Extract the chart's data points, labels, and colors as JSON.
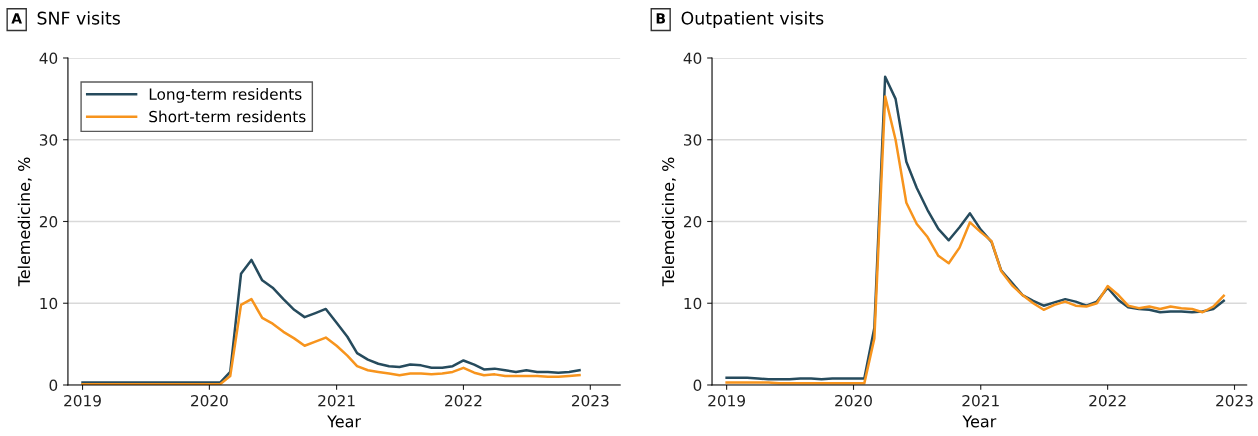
{
  "chart_data": [
    {
      "type": "line",
      "title": "SNF visits",
      "annotations": [
        "A"
      ],
      "xlabel": "Year",
      "ylabel": "Telemedicine, %",
      "x": [
        "2019-01",
        "2019-02",
        "2019-03",
        "2019-04",
        "2019-05",
        "2019-06",
        "2019-07",
        "2019-08",
        "2019-09",
        "2019-10",
        "2019-11",
        "2019-12",
        "2020-01",
        "2020-02",
        "2020-03",
        "2020-04",
        "2020-05",
        "2020-06",
        "2020-07",
        "2020-08",
        "2020-09",
        "2020-10",
        "2020-11",
        "2020-12",
        "2021-01",
        "2021-02",
        "2021-03",
        "2021-04",
        "2021-05",
        "2021-06",
        "2021-07",
        "2021-08",
        "2021-09",
        "2021-10",
        "2021-11",
        "2021-12",
        "2022-01",
        "2022-02",
        "2022-03",
        "2022-04",
        "2022-05",
        "2022-06",
        "2022-07",
        "2022-08",
        "2022-09",
        "2022-10",
        "2022-11",
        "2022-12"
      ],
      "series": [
        {
          "name": "Long-term residents",
          "color": "#264b5d",
          "values": [
            0.3,
            0.3,
            0.3,
            0.3,
            0.3,
            0.3,
            0.3,
            0.3,
            0.3,
            0.3,
            0.3,
            0.3,
            0.3,
            0.3,
            1.6,
            13.6,
            15.3,
            12.8,
            11.9,
            10.5,
            9.2,
            8.3,
            8.8,
            9.3,
            7.6,
            5.9,
            3.9,
            3.1,
            2.6,
            2.3,
            2.2,
            2.5,
            2.4,
            2.1,
            2.1,
            2.3,
            3.0,
            2.5,
            1.9,
            2.0,
            1.8,
            1.6,
            1.8,
            1.6,
            1.6,
            1.5,
            1.6,
            1.8
          ]
        },
        {
          "name": "Short-term residents",
          "color": "#f7941d",
          "values": [
            0.1,
            0.1,
            0.1,
            0.1,
            0.1,
            0.1,
            0.1,
            0.1,
            0.1,
            0.1,
            0.1,
            0.1,
            0.1,
            0.1,
            1.1,
            9.8,
            10.5,
            8.2,
            7.5,
            6.5,
            5.7,
            4.8,
            5.3,
            5.8,
            4.8,
            3.6,
            2.3,
            1.8,
            1.6,
            1.4,
            1.2,
            1.4,
            1.4,
            1.3,
            1.4,
            1.6,
            2.1,
            1.5,
            1.2,
            1.3,
            1.1,
            1.1,
            1.1,
            1.1,
            1.0,
            1.0,
            1.1,
            1.2
          ]
        }
      ],
      "xlim": [
        "2018-11-20",
        "2023-03-28"
      ],
      "xticks": [
        "2019",
        "2020",
        "2021",
        "2022",
        "2023"
      ],
      "ylim": [
        0,
        40
      ],
      "yticks": [
        0,
        10,
        20,
        30,
        40
      ],
      "grid": "y",
      "legend": "top left",
      "line_style": "solid"
    },
    {
      "type": "line",
      "title": "Outpatient visits",
      "annotations": [
        "B"
      ],
      "xlabel": "Year",
      "ylabel": "Telemedicine, %",
      "x": [
        "2019-01",
        "2019-02",
        "2019-03",
        "2019-04",
        "2019-05",
        "2019-06",
        "2019-07",
        "2019-08",
        "2019-09",
        "2019-10",
        "2019-11",
        "2019-12",
        "2020-01",
        "2020-02",
        "2020-03",
        "2020-04",
        "2020-05",
        "2020-06",
        "2020-07",
        "2020-08",
        "2020-09",
        "2020-10",
        "2020-11",
        "2020-12",
        "2021-01",
        "2021-02",
        "2021-03",
        "2021-04",
        "2021-05",
        "2021-06",
        "2021-07",
        "2021-08",
        "2021-09",
        "2021-10",
        "2021-11",
        "2021-12",
        "2022-01",
        "2022-02",
        "2022-03",
        "2022-04",
        "2022-05",
        "2022-06",
        "2022-07",
        "2022-08",
        "2022-09",
        "2022-10",
        "2022-11",
        "2022-12"
      ],
      "series": [
        {
          "color": "#264b5d",
          "values": [
            0.9,
            0.9,
            0.9,
            0.8,
            0.7,
            0.7,
            0.7,
            0.8,
            0.8,
            0.7,
            0.8,
            0.8,
            0.8,
            0.8,
            7.0,
            37.7,
            35.0,
            27.3,
            24.1,
            21.4,
            19.1,
            17.7,
            19.3,
            21.0,
            19.0,
            17.5,
            14.0,
            12.5,
            11.0,
            10.3,
            9.7,
            10.1,
            10.5,
            10.2,
            9.7,
            10.2,
            11.9,
            10.4,
            9.5,
            9.3,
            9.2,
            8.9,
            9.0,
            9.0,
            8.9,
            9.0,
            9.3,
            10.3
          ]
        },
        {
          "color": "#f7941d",
          "values": [
            0.3,
            0.3,
            0.3,
            0.3,
            0.3,
            0.2,
            0.2,
            0.2,
            0.2,
            0.2,
            0.2,
            0.2,
            0.2,
            0.2,
            5.7,
            35.3,
            30.0,
            22.3,
            19.7,
            18.1,
            15.8,
            14.9,
            16.8,
            19.9,
            18.7,
            17.6,
            13.9,
            12.2,
            11.0,
            10.0,
            9.2,
            9.8,
            10.2,
            9.7,
            9.6,
            10.0,
            12.1,
            11.0,
            9.7,
            9.4,
            9.6,
            9.3,
            9.6,
            9.4,
            9.3,
            8.9,
            9.6,
            10.9
          ]
        }
      ],
      "xlim": [
        "2018-11-20",
        "2023-02-05"
      ],
      "xticks": [
        "2019",
        "2020",
        "2021",
        "2022",
        "2023"
      ],
      "ylim": [
        0,
        40
      ],
      "yticks": [
        0,
        10,
        20,
        30,
        40
      ],
      "grid": "y",
      "line_style": "solid"
    }
  ]
}
